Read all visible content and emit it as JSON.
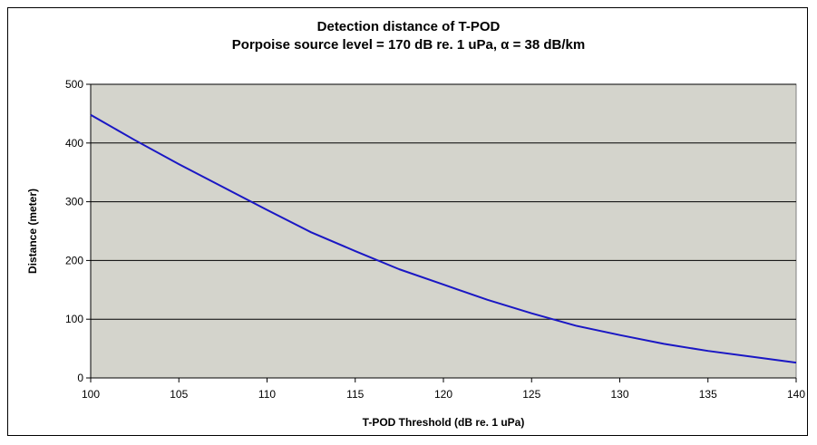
{
  "chart_data": {
    "type": "line",
    "title": "Detection distance of T-POD",
    "subtitle": "Porpoise source level = 170 dB re. 1 uPa, α = 38 dB/km",
    "xlabel": "T-POD Threshold (dB re. 1 uPa)",
    "ylabel": "Distance (meter)",
    "xlim": [
      100,
      140
    ],
    "ylim": [
      0,
      500
    ],
    "xticks": [
      100,
      105,
      110,
      115,
      120,
      125,
      130,
      135,
      140
    ],
    "yticks": [
      0,
      100,
      200,
      300,
      400,
      500
    ],
    "grid": "horizontal",
    "background": "#d4d4cc",
    "series": [
      {
        "color": "#1a17c4",
        "x": [
          100,
          102.5,
          105,
          107.5,
          110,
          112.5,
          115,
          117.5,
          120,
          122.5,
          125,
          127.5,
          130,
          132.5,
          135,
          137.5,
          140
        ],
        "y": [
          448,
          405,
          364,
          325,
          286,
          248,
          216,
          185,
          159,
          133,
          110,
          89,
          73,
          58,
          46,
          36,
          26
        ]
      }
    ]
  }
}
